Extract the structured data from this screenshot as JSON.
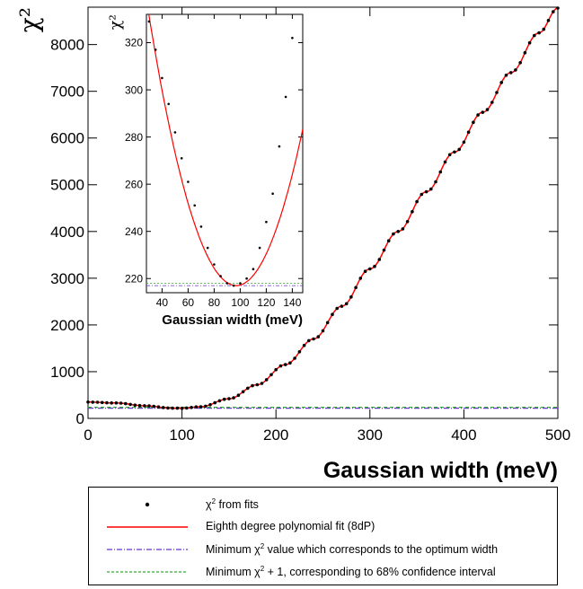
{
  "chart_data": [
    {
      "type": "scatter",
      "xlabel": "Gaussian width (meV)",
      "ylabel": "χ²",
      "xlim": [
        0,
        500
      ],
      "ylim": [
        0,
        8800
      ],
      "xticks": [
        0,
        100,
        200,
        300,
        400,
        500
      ],
      "yticks": [
        0,
        1000,
        2000,
        3000,
        4000,
        5000,
        6000,
        7000,
        8000
      ],
      "xtick_labels": [
        "0",
        "100",
        "200",
        "300",
        "400",
        "500"
      ],
      "ytick_labels": [
        "0",
        "1000",
        "2000",
        "3000",
        "4000",
        "5000",
        "6000",
        "7000",
        "8000"
      ],
      "series": [
        {
          "name": "χ² from fits",
          "style": "points",
          "x": [
            0,
            30,
            60,
            90,
            100,
            120,
            150,
            180,
            210,
            240,
            270,
            300,
            330,
            360,
            390,
            420,
            450,
            480,
            500
          ],
          "y": [
            350,
            330,
            270,
            220,
            218,
            250,
            420,
            720,
            1150,
            1700,
            2400,
            3200,
            4000,
            4850,
            5700,
            6550,
            7400,
            8250,
            8780
          ]
        },
        {
          "name": "Eighth degree polynomial fit (8dP)",
          "style": "line",
          "color": "#ff0000"
        },
        {
          "name": "Minimum χ² value which corresponds to the optimum width",
          "style": "dash-dot",
          "color": "#6633cc",
          "y": 218
        },
        {
          "name": "Minimum χ² + 1, corresponding to 68% confidence interval",
          "style": "dashed",
          "color": "#33aa33",
          "y": 219
        }
      ],
      "legend": "below"
    },
    {
      "type": "scatter",
      "inset": true,
      "xlabel": "Gaussian width (meV)",
      "ylabel": "χ²",
      "xlim": [
        28,
        148
      ],
      "ylim": [
        214,
        332
      ],
      "xticks": [
        40,
        60,
        80,
        100,
        120,
        140
      ],
      "yticks": [
        220,
        240,
        260,
        280,
        300,
        320
      ],
      "xtick_labels": [
        "40",
        "60",
        "80",
        "100",
        "120",
        "140"
      ],
      "ytick_labels": [
        "220",
        "240",
        "260",
        "280",
        "300",
        "320"
      ],
      "x": [
        30,
        35,
        40,
        45,
        50,
        55,
        60,
        65,
        70,
        75,
        80,
        85,
        90,
        95,
        100,
        105,
        110,
        115,
        120,
        125,
        130,
        135,
        140
      ],
      "y": [
        329,
        317,
        305,
        294,
        282,
        271,
        261,
        251,
        242,
        233,
        226,
        221,
        218,
        217,
        218,
        220,
        224,
        233,
        244,
        256,
        276,
        297,
        322
      ]
    }
  ],
  "legend": {
    "entries": [
      {
        "prefix": "χ",
        "sup": "2",
        "suffix": " from fits"
      },
      {
        "prefix": "Eighth degree polynomial fit (8dP)",
        "sup": "",
        "suffix": ""
      },
      {
        "prefix": "Minimum χ",
        "sup": "2",
        "suffix": " value which corresponds to the optimum width"
      },
      {
        "prefix": "Minimum χ",
        "sup": "2",
        "suffix": " + 1, corresponding to 68% confidence interval"
      }
    ]
  },
  "colors": {
    "fit": "#ff0000",
    "points": "#000000",
    "minimum": "#6633cc",
    "confidence": "#33aa33"
  }
}
